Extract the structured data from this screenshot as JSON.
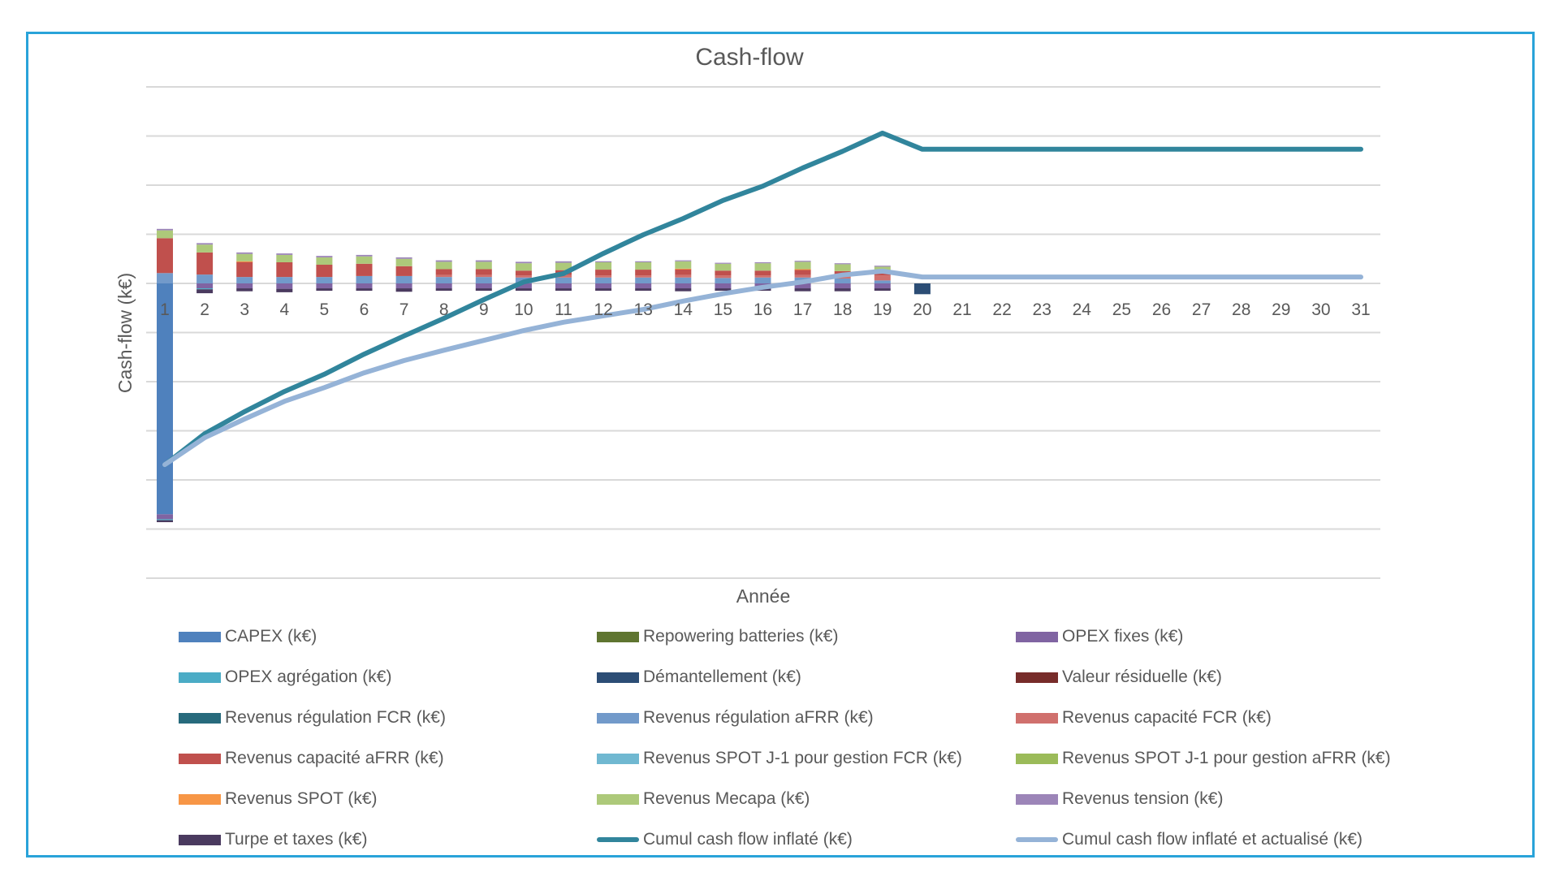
{
  "chart_data": {
    "type": "bar",
    "subtype": "stacked bar with cumulative lines",
    "title": "Cash-flow",
    "xlabel": "Année",
    "ylabel": "Cash-flow (k€)",
    "y_units_note": "y tick labels hidden; values in gridline units (1 unit = 1 gridline interval)",
    "ylim": [
      -6,
      4
    ],
    "grid": true,
    "legend_position": "bottom",
    "categories": [
      "1",
      "2",
      "3",
      "4",
      "5",
      "6",
      "7",
      "8",
      "9",
      "10",
      "11",
      "12",
      "13",
      "14",
      "15",
      "16",
      "17",
      "18",
      "19",
      "20",
      "21",
      "22",
      "23",
      "24",
      "25",
      "26",
      "27",
      "28",
      "29",
      "30",
      "31"
    ],
    "bar_series": [
      {
        "name": "CAPEX (k€)",
        "color": "#4f81bd",
        "values": [
          -4.7,
          0,
          0,
          0,
          0,
          0,
          0,
          0,
          0,
          0,
          0,
          0,
          0,
          0,
          0,
          0,
          0,
          0,
          0,
          0,
          0,
          0,
          0,
          0,
          0,
          0,
          0,
          0,
          0,
          0,
          0
        ]
      },
      {
        "name": "Repowering batteries (k€)",
        "color": "#5f7530",
        "values": [
          0,
          0,
          0,
          0,
          0,
          0,
          0,
          0,
          0,
          0,
          0,
          0,
          0,
          0,
          0,
          0,
          0,
          0,
          0,
          0,
          0,
          0,
          0,
          0,
          0,
          0,
          0,
          0,
          0,
          0,
          0
        ]
      },
      {
        "name": "OPEX fixes (k€)",
        "color": "#8064a2",
        "values": [
          -0.1,
          -0.1,
          -0.1,
          -0.11,
          -0.1,
          -0.1,
          -0.1,
          -0.1,
          -0.1,
          -0.1,
          -0.1,
          -0.1,
          -0.1,
          -0.1,
          -0.1,
          -0.1,
          -0.1,
          -0.1,
          -0.1,
          0,
          0,
          0,
          0,
          0,
          0,
          0,
          0,
          0,
          0,
          0,
          0
        ]
      },
      {
        "name": "OPEX agrégation (k€)",
        "color": "#4bacc6",
        "values": [
          -0.02,
          -0.02,
          0,
          0,
          0,
          0,
          0,
          0,
          0,
          0,
          0,
          0,
          0,
          0,
          0,
          0,
          0,
          0,
          0,
          0,
          0,
          0,
          0,
          0,
          0,
          0,
          0,
          0,
          0,
          0,
          0
        ]
      },
      {
        "name": "Démantellement (k€)",
        "color": "#2c4d75",
        "values": [
          0,
          0,
          0,
          0,
          0,
          0,
          0,
          0,
          0,
          0,
          0,
          0,
          0,
          0,
          0,
          0,
          0,
          0,
          0,
          -0.22,
          0,
          0,
          0,
          0,
          0,
          0,
          0,
          0,
          0,
          0,
          0
        ]
      },
      {
        "name": "Valeur résiduelle (k€)",
        "color": "#772c2a",
        "values": [
          0,
          0,
          0,
          0,
          0,
          0,
          0,
          0,
          0,
          0,
          0,
          0,
          0,
          0,
          0,
          0,
          0,
          0,
          0,
          0,
          0,
          0,
          0,
          0,
          0,
          0,
          0,
          0,
          0,
          0,
          0
        ]
      },
      {
        "name": "Revenus régulation FCR (k€)",
        "color": "#276a7c",
        "values": [
          0,
          0,
          0,
          0,
          0,
          0,
          0,
          0,
          0,
          0,
          0,
          0,
          0,
          0,
          0,
          0,
          0,
          0,
          0,
          0,
          0,
          0,
          0,
          0,
          0,
          0,
          0,
          0,
          0,
          0,
          0
        ]
      },
      {
        "name": "Revenus régulation aFRR (k€)",
        "color": "#729aca",
        "values": [
          0.21,
          0.18,
          0.13,
          0.13,
          0.13,
          0.15,
          0.15,
          0.13,
          0.13,
          0.12,
          0.12,
          0.12,
          0.12,
          0.12,
          0.11,
          0.12,
          0.12,
          0.1,
          0.06,
          0,
          0,
          0,
          0,
          0,
          0,
          0,
          0,
          0,
          0,
          0,
          0
        ]
      },
      {
        "name": "Revenus capacité FCR (k€)",
        "color": "#d0706d",
        "values": [
          0,
          0,
          0,
          0,
          0,
          0,
          0,
          0.04,
          0.04,
          0.04,
          0.05,
          0.04,
          0.04,
          0.05,
          0.05,
          0.04,
          0.05,
          0.05,
          0.1,
          0,
          0,
          0,
          0,
          0,
          0,
          0,
          0,
          0,
          0,
          0,
          0
        ]
      },
      {
        "name": "Revenus capacité aFRR (k€)",
        "color": "#c0504d",
        "values": [
          0.71,
          0.45,
          0.31,
          0.3,
          0.25,
          0.25,
          0.2,
          0.12,
          0.12,
          0.1,
          0.1,
          0.12,
          0.12,
          0.12,
          0.1,
          0.1,
          0.11,
          0.1,
          0.05,
          0,
          0,
          0,
          0,
          0,
          0,
          0,
          0,
          0,
          0,
          0,
          0
        ]
      },
      {
        "name": "Revenus SPOT J-1 pour gestion FCR (k€)",
        "color": "#70b8d1",
        "values": [
          0,
          0,
          0,
          0,
          0,
          0,
          0,
          0,
          0,
          0,
          0,
          0,
          0,
          0,
          0,
          0,
          0,
          0,
          0,
          0,
          0,
          0,
          0,
          0,
          0,
          0,
          0,
          0,
          0,
          0,
          0
        ]
      },
      {
        "name": "Revenus SPOT J-1 pour gestion aFRR (k€)",
        "color": "#9bbb59",
        "values": [
          0,
          0,
          0,
          0,
          0,
          0,
          0,
          0,
          0,
          0,
          0,
          0,
          0,
          0,
          0,
          0,
          0,
          0,
          0,
          0,
          0,
          0,
          0,
          0,
          0,
          0,
          0,
          0,
          0,
          0,
          0
        ]
      },
      {
        "name": "Revenus SPOT (k€)",
        "color": "#f79646",
        "values": [
          0,
          0,
          0.01,
          0,
          0,
          0,
          0,
          0,
          0,
          0,
          0,
          0,
          0,
          0.01,
          0,
          0,
          0.01,
          0,
          0,
          0,
          0,
          0,
          0,
          0,
          0,
          0,
          0,
          0,
          0,
          0,
          0
        ]
      },
      {
        "name": "Revenus Mecapa (k€)",
        "color": "#adc97a",
        "values": [
          0.16,
          0.16,
          0.15,
          0.15,
          0.15,
          0.15,
          0.15,
          0.15,
          0.15,
          0.15,
          0.15,
          0.15,
          0.15,
          0.15,
          0.14,
          0.15,
          0.15,
          0.14,
          0.13,
          0,
          0,
          0,
          0,
          0,
          0,
          0,
          0,
          0,
          0,
          0,
          0
        ]
      },
      {
        "name": "Revenus tension (k€)",
        "color": "#9c85b8",
        "values": [
          0.03,
          0.03,
          0.03,
          0.03,
          0.03,
          0.03,
          0.03,
          0.03,
          0.03,
          0.03,
          0.03,
          0.02,
          0.02,
          0.02,
          0.02,
          0.02,
          0.02,
          0.02,
          0.02,
          0,
          0,
          0,
          0,
          0,
          0,
          0,
          0,
          0,
          0,
          0,
          0
        ]
      },
      {
        "name": "Turpe et taxes (k€)",
        "color": "#4a3a5f",
        "values": [
          -0.04,
          -0.08,
          -0.06,
          -0.07,
          -0.05,
          -0.05,
          -0.07,
          -0.05,
          -0.05,
          -0.05,
          -0.05,
          -0.05,
          -0.05,
          -0.06,
          -0.05,
          -0.05,
          -0.06,
          -0.06,
          -0.05,
          0,
          0,
          0,
          0,
          0,
          0,
          0,
          0,
          0,
          0,
          0,
          0
        ]
      }
    ],
    "line_series": [
      {
        "name": "Cumul cash flow inflaté (k€)",
        "color": "#31859c",
        "values": [
          -3.69,
          -3.06,
          -2.61,
          -2.2,
          -1.85,
          -1.44,
          -1.07,
          -0.71,
          -0.33,
          0.03,
          0.2,
          0.61,
          0.99,
          1.32,
          1.69,
          1.98,
          2.35,
          2.69,
          3.06,
          2.73,
          2.73,
          2.73,
          2.73,
          2.73,
          2.73,
          2.73,
          2.73,
          2.73,
          2.73,
          2.73,
          2.73
        ]
      },
      {
        "name": "Cumul cash flow inflaté et actualisé (k€)",
        "color": "#95b3d7",
        "values": [
          -3.69,
          -3.14,
          -2.76,
          -2.4,
          -2.12,
          -1.82,
          -1.57,
          -1.36,
          -1.16,
          -0.96,
          -0.79,
          -0.66,
          -0.53,
          -0.36,
          -0.21,
          -0.08,
          0.03,
          0.17,
          0.25,
          0.13,
          0.13,
          0.13,
          0.13,
          0.13,
          0.13,
          0.13,
          0.13,
          0.13,
          0.13,
          0.13,
          0.13
        ]
      }
    ]
  },
  "legend": {
    "items": [
      {
        "label": "CAPEX (k€)",
        "color": "#4f81bd",
        "kind": "bar"
      },
      {
        "label": "Repowering batteries (k€)",
        "color": "#5f7530",
        "kind": "bar"
      },
      {
        "label": "OPEX fixes (k€)",
        "color": "#8064a2",
        "kind": "bar"
      },
      {
        "label": "OPEX agrégation (k€)",
        "color": "#4bacc6",
        "kind": "bar"
      },
      {
        "label": "Démantellement  (k€)",
        "color": "#2c4d75",
        "kind": "bar"
      },
      {
        "label": "Valeur résiduelle (k€)",
        "color": "#772c2a",
        "kind": "bar"
      },
      {
        "label": "Revenus régulation FCR (k€)",
        "color": "#276a7c",
        "kind": "bar"
      },
      {
        "label": "Revenus régulation aFRR (k€)",
        "color": "#729aca",
        "kind": "bar"
      },
      {
        "label": "Revenus capacité FCR (k€)",
        "color": "#d0706d",
        "kind": "bar"
      },
      {
        "label": "Revenus capacité aFRR (k€)",
        "color": "#c0504d",
        "kind": "bar"
      },
      {
        "label": "Revenus SPOT J-1 pour gestion FCR (k€)",
        "color": "#70b8d1",
        "kind": "bar"
      },
      {
        "label": "Revenus SPOT J-1 pour gestion aFRR (k€)",
        "color": "#9bbb59",
        "kind": "bar"
      },
      {
        "label": "Revenus SPOT (k€)",
        "color": "#f79646",
        "kind": "bar"
      },
      {
        "label": "Revenus Mecapa (k€)",
        "color": "#adc97a",
        "kind": "bar"
      },
      {
        "label": "Revenus tension (k€)",
        "color": "#9c85b8",
        "kind": "bar"
      },
      {
        "label": "Turpe et taxes (k€)",
        "color": "#4a3a5f",
        "kind": "bar"
      },
      {
        "label": "Cumul cash flow inflaté (k€)",
        "color": "#31859c",
        "kind": "line"
      },
      {
        "label": "Cumul cash flow inflaté et actualisé (k€)",
        "color": "#95b3d7",
        "kind": "line"
      }
    ]
  },
  "frame": {
    "border_color": "#29a3d9"
  }
}
